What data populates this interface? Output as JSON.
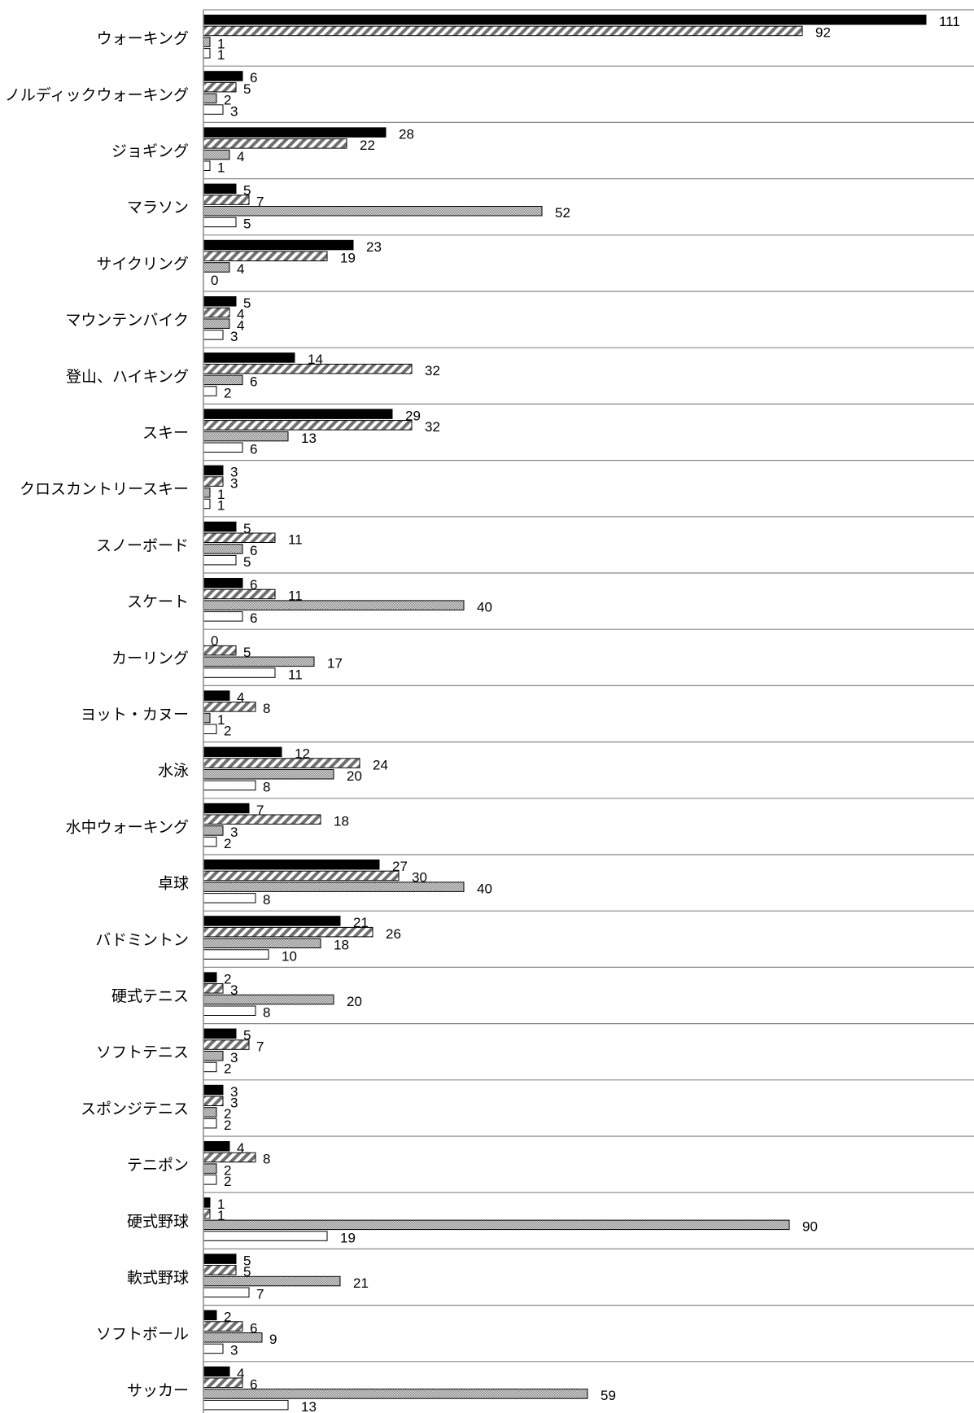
{
  "chart_data": {
    "type": "bar",
    "orientation": "horizontal",
    "title": "",
    "xlabel": "",
    "ylabel": "",
    "xlim": [
      0,
      111
    ],
    "grid": "horizontal separators between categories",
    "legend": "none",
    "categories": [
      "ウォーキング",
      "ノルディックウォーキング",
      "ジョギング",
      "マラソン",
      "サイクリング",
      "マウンテンバイク",
      "登山、ハイキング",
      "スキー",
      "クロスカントリースキー",
      "スノーボード",
      "スケート",
      "カーリング",
      "ヨット・カヌー",
      "水泳",
      "水中ウォーキング",
      "卓球",
      "バドミントン",
      "硬式テニス",
      "ソフトテニス",
      "スポンジテニス",
      "テニポン",
      "硬式野球",
      "軟式野球",
      "ソフトボール",
      "サッカー"
    ],
    "series": [
      {
        "style": "solid-black",
        "values": [
          111,
          6,
          28,
          5,
          23,
          5,
          14,
          29,
          3,
          5,
          6,
          0,
          4,
          12,
          7,
          27,
          21,
          2,
          5,
          3,
          4,
          1,
          5,
          2,
          4
        ]
      },
      {
        "style": "diagonal-hatch",
        "values": [
          92,
          5,
          22,
          7,
          19,
          4,
          32,
          32,
          3,
          11,
          11,
          5,
          8,
          24,
          18,
          30,
          26,
          3,
          7,
          3,
          8,
          1,
          5,
          6,
          6
        ]
      },
      {
        "style": "dotted-gray",
        "values": [
          1,
          2,
          4,
          52,
          4,
          4,
          6,
          13,
          1,
          6,
          40,
          17,
          1,
          20,
          3,
          40,
          18,
          20,
          3,
          2,
          2,
          90,
          21,
          9,
          59
        ]
      },
      {
        "style": "white-outline",
        "values": [
          1,
          3,
          1,
          5,
          0,
          3,
          2,
          6,
          1,
          5,
          6,
          11,
          2,
          8,
          2,
          8,
          10,
          8,
          2,
          2,
          2,
          19,
          7,
          3,
          13
        ]
      }
    ],
    "colors": {
      "solid": "#000000",
      "hatch_stroke": "#707070",
      "dotted": "#a8a8a8",
      "outline": "#000000",
      "grid": "#888888"
    }
  }
}
